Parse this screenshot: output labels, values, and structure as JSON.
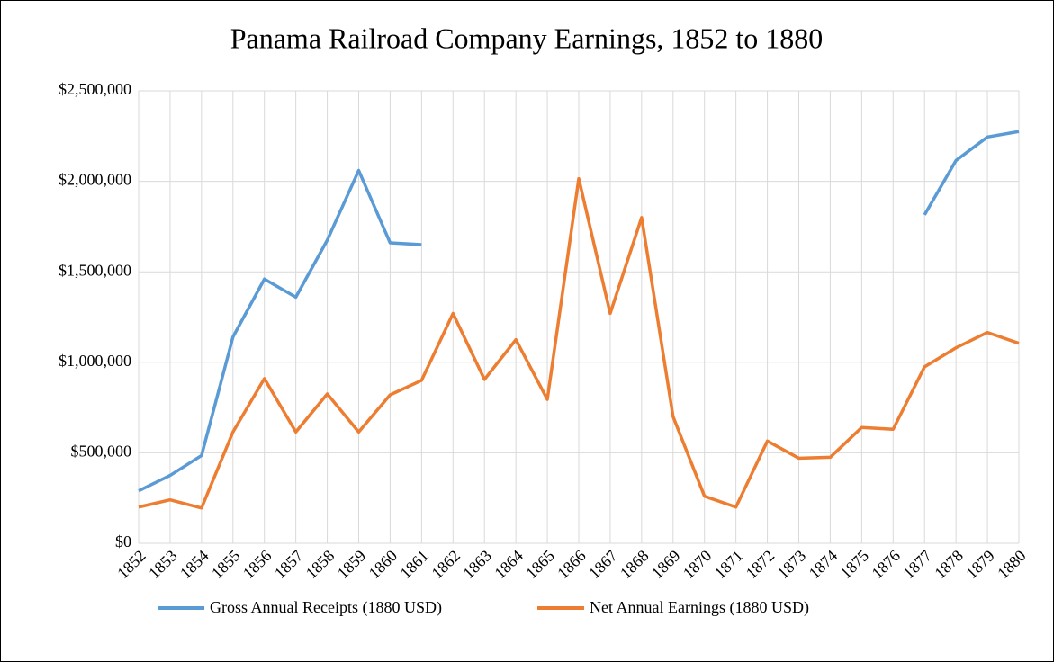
{
  "chart_data": {
    "type": "line",
    "title": "Panama Railroad Company Earnings, 1852 to 1880",
    "x": [
      1852,
      1853,
      1854,
      1855,
      1856,
      1857,
      1858,
      1859,
      1860,
      1861,
      1862,
      1863,
      1864,
      1865,
      1866,
      1867,
      1868,
      1869,
      1870,
      1871,
      1872,
      1873,
      1874,
      1875,
      1876,
      1877,
      1878,
      1879,
      1880
    ],
    "xlim": [
      1852,
      1880
    ],
    "xticks": [
      1852,
      1853,
      1854,
      1855,
      1856,
      1857,
      1858,
      1859,
      1860,
      1861,
      1862,
      1863,
      1864,
      1865,
      1866,
      1867,
      1868,
      1869,
      1870,
      1871,
      1872,
      1873,
      1874,
      1875,
      1876,
      1877,
      1878,
      1879,
      1880
    ],
    "ylim": [
      0,
      2500000
    ],
    "yticks": [
      {
        "value": 0,
        "label": "$0"
      },
      {
        "value": 500000,
        "label": "$500,000"
      },
      {
        "value": 1000000,
        "label": "$1,000,000"
      },
      {
        "value": 1500000,
        "label": "$1,500,000"
      },
      {
        "value": 2000000,
        "label": "$2,000,000"
      },
      {
        "value": 2500000,
        "label": "$2,500,000"
      }
    ],
    "grid": true,
    "legend": "bottom",
    "series": [
      {
        "name": "Gross Annual Receipts (1880 USD)",
        "color": "#5b9bd5",
        "values": [
          290000,
          375000,
          485000,
          1140000,
          1460000,
          1360000,
          1675000,
          2060000,
          1660000,
          1650000,
          null,
          null,
          null,
          null,
          null,
          null,
          null,
          null,
          null,
          null,
          null,
          null,
          null,
          null,
          null,
          1815000,
          2115000,
          2245000,
          2275000
        ]
      },
      {
        "name": "Net Annual Earnings (1880 USD)",
        "color": "#ed7d31",
        "values": [
          200000,
          240000,
          195000,
          615000,
          910000,
          615000,
          825000,
          615000,
          820000,
          900000,
          1270000,
          905000,
          1125000,
          795000,
          2015000,
          1270000,
          1800000,
          700000,
          260000,
          200000,
          565000,
          470000,
          475000,
          640000,
          630000,
          975000,
          1080000,
          1165000,
          1105000
        ]
      }
    ]
  }
}
